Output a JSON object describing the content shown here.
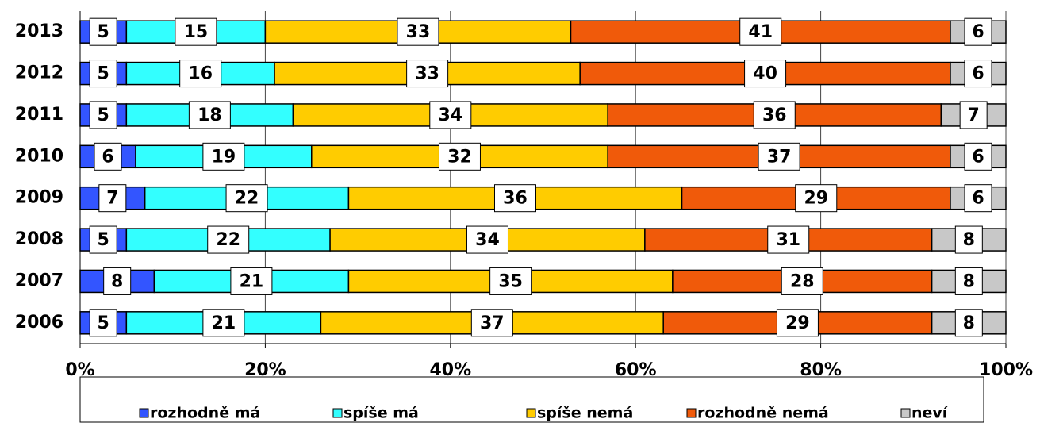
{
  "chart_data": {
    "type": "stacked-bar-horizontal",
    "categories": [
      "2013",
      "2012",
      "2011",
      "2010",
      "2009",
      "2008",
      "2007",
      "2006"
    ],
    "series": [
      {
        "name": "rozhodně má",
        "color": "#3355ff",
        "values": [
          5,
          5,
          5,
          6,
          7,
          5,
          8,
          5
        ]
      },
      {
        "name": "spíše má",
        "color": "#33ffff",
        "values": [
          15,
          16,
          18,
          19,
          22,
          22,
          21,
          21
        ]
      },
      {
        "name": "spíše nemá",
        "color": "#ffcc00",
        "values": [
          33,
          33,
          34,
          32,
          36,
          34,
          35,
          37
        ]
      },
      {
        "name": "rozhodně nemá",
        "color": "#f05a0a",
        "values": [
          41,
          40,
          36,
          37,
          29,
          31,
          28,
          29
        ]
      },
      {
        "name": "neví",
        "color": "#c8c8c8",
        "values": [
          6,
          6,
          7,
          6,
          6,
          8,
          8,
          8
        ]
      }
    ],
    "xlim": [
      0,
      100
    ],
    "xticks": [
      {
        "value": 0,
        "label": "0%"
      },
      {
        "value": 20,
        "label": "20%"
      },
      {
        "value": 40,
        "label": "40%"
      },
      {
        "value": 60,
        "label": "60%"
      },
      {
        "value": 80,
        "label": "80%"
      },
      {
        "value": 100,
        "label": "100%"
      }
    ],
    "grid": true,
    "legend": "bottom"
  }
}
